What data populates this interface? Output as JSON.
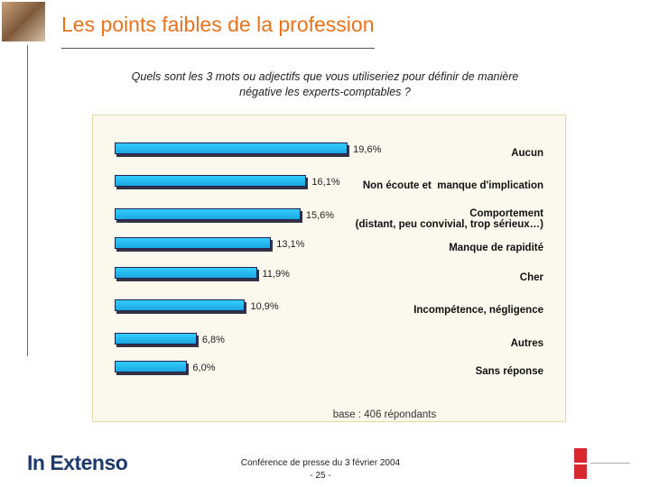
{
  "header": {
    "title": "Les points faibles de la profession"
  },
  "chart_data": {
    "type": "bar",
    "orientation": "horizontal",
    "subtitle": "Quels sont les 3 mots ou adjectifs que vous utiliseriez pour définir de manière négative les experts-comptables ?",
    "categories": [
      "Aucun",
      "Non écoute et  manque d'implication",
      "Comportement\n(distant, peu convivial, trop sérieux…)",
      "Manque de rapidité",
      "Cher",
      "Incompétence, négligence",
      "Autres",
      "Sans réponse"
    ],
    "values": [
      19.6,
      16.1,
      15.6,
      13.1,
      11.9,
      10.9,
      6.8,
      6.0
    ],
    "value_labels": [
      "19,6%",
      "16,1%",
      "15,6%",
      "13,1%",
      "11,9%",
      "10,9%",
      "6,8%",
      "6,0%"
    ],
    "color": "#33ccff",
    "note": "base : 406 répondants"
  },
  "footer": {
    "logo": "In Extenso",
    "event": "Conférence de presse du 3 février 2004",
    "page": "- 25 -"
  }
}
